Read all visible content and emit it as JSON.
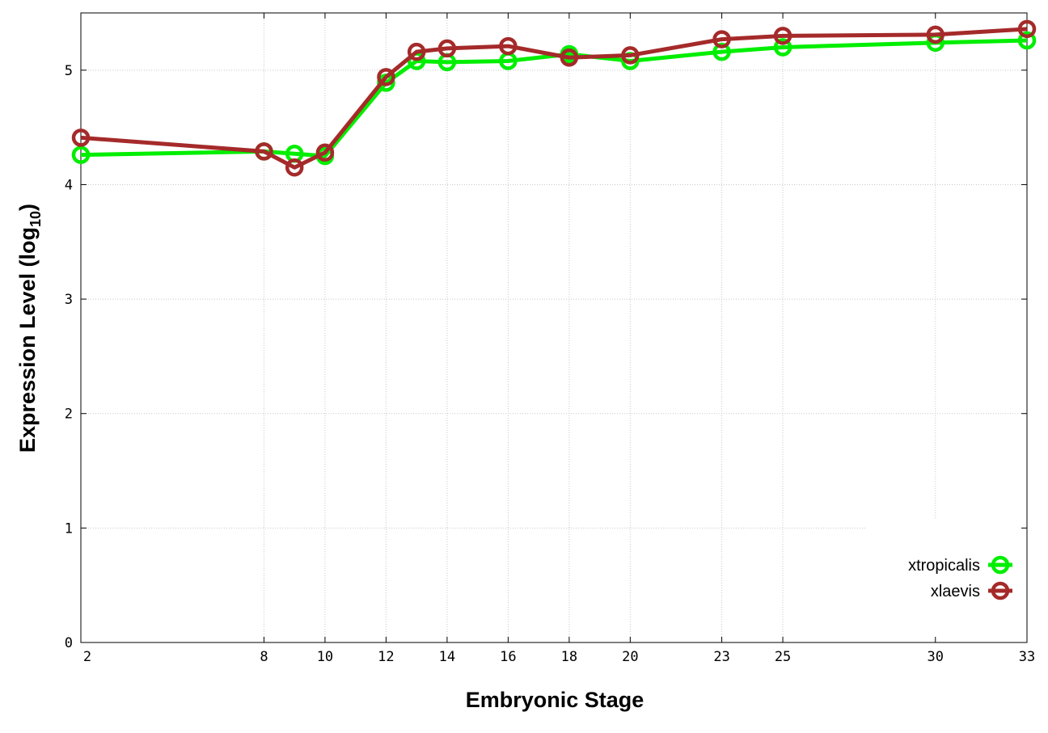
{
  "chart_data": {
    "type": "line",
    "xlabel": "Embryonic Stage",
    "ylabel": "Expression Level (log",
    "ylabel_sub": "10",
    "ylabel_close": ")",
    "xlim": [
      2,
      33
    ],
    "ylim": [
      0,
      5.5
    ],
    "x_ticks": [
      2,
      8,
      10,
      12,
      14,
      16,
      18,
      20,
      23,
      25,
      30,
      33
    ],
    "y_ticks": [
      0,
      1,
      2,
      3,
      4,
      5
    ],
    "grid": true,
    "legend_position": "bottom-right",
    "x": [
      2,
      8,
      9,
      10,
      12,
      13,
      14,
      16,
      18,
      20,
      23,
      25,
      30,
      33
    ],
    "series": [
      {
        "name": "xtropicalis",
        "color": "#00ee00",
        "values": [
          4.26,
          4.29,
          4.27,
          4.25,
          4.89,
          5.08,
          5.07,
          5.08,
          5.14,
          5.08,
          5.16,
          5.2,
          5.24,
          5.26
        ]
      },
      {
        "name": "xlaevis",
        "color": "#a52a2a",
        "values": [
          4.41,
          4.29,
          4.15,
          4.28,
          4.94,
          5.16,
          5.19,
          5.21,
          5.11,
          5.13,
          5.27,
          5.3,
          5.31,
          5.36
        ]
      }
    ]
  }
}
